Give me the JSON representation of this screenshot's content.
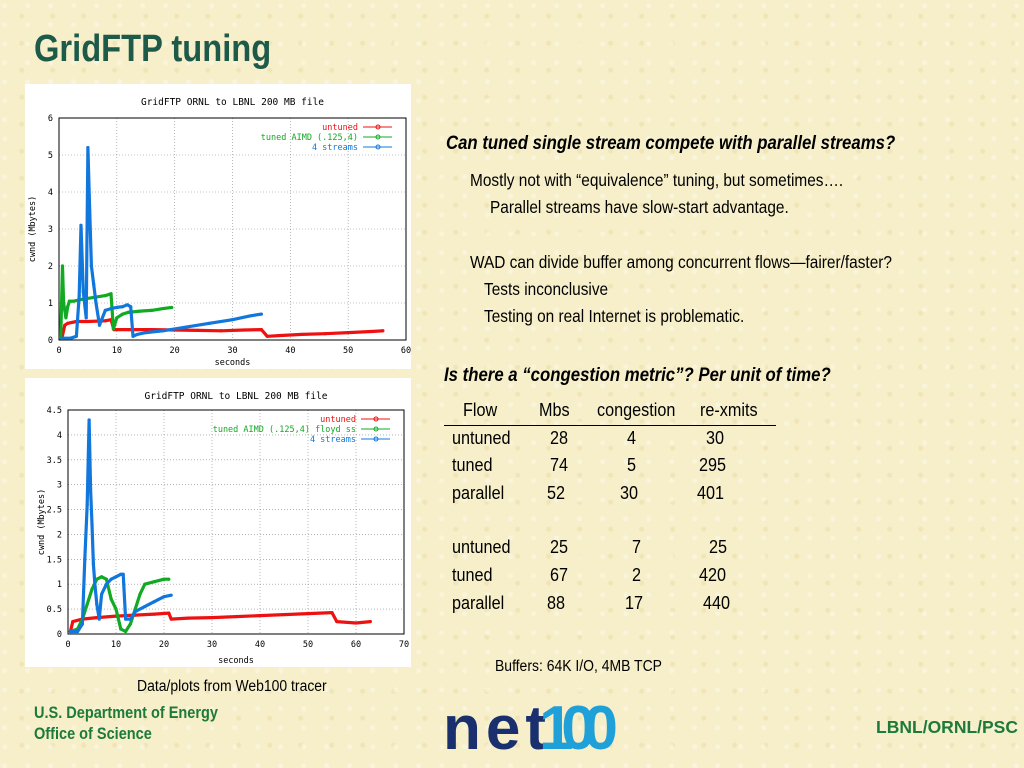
{
  "slide": {
    "title": "GridFTP tuning",
    "question1": "Can tuned single stream compete with parallel streams?",
    "lines1": [
      "Mostly not with “equivalence” tuning, but sometimes….",
      "Parallel streams have slow-start advantage.",
      "WAD can divide buffer among concurrent flows—fairer/faster?",
      "Tests inconclusive",
      "Testing on real Internet is problematic."
    ],
    "question2": "Is there a “congestion metric”?   Per unit of time?",
    "table": {
      "headers": [
        "Flow",
        "Mbs",
        "congestion",
        "re-xmits"
      ],
      "group1": [
        [
          "untuned",
          "28",
          "4",
          "30"
        ],
        [
          "tuned",
          "74",
          "5",
          "295"
        ],
        [
          "parallel",
          "52",
          "30",
          "401"
        ]
      ],
      "group2": [
        [
          "untuned",
          "25",
          "7",
          "25"
        ],
        [
          "tuned",
          "67",
          "2",
          "420"
        ],
        [
          "parallel",
          "88",
          "17",
          "440"
        ]
      ]
    },
    "buffers_note": "Buffers: 64K I/O,  4MB TCP",
    "plots_caption": "Data/plots from Web100 tracer",
    "footer_left": [
      "U.S. Department of Energy",
      "Office of Science"
    ],
    "footer_right": "LBNL/ORNL/PSC",
    "logo_text": "net100",
    "colors": {
      "title": "#1d5a4a",
      "footer": "#1d7a3a",
      "untuned": "#ee1111",
      "tuned": "#11aa22",
      "streams": "#1177dd",
      "logo_dark": "#1a2f6e",
      "logo_light": "#1fa0d8"
    }
  },
  "chart_data": [
    {
      "type": "line",
      "title": "GridFTP ORNL to LBNL 200 MB file",
      "xlabel": "seconds",
      "ylabel": "cwnd (Mbytes)",
      "xlim": [
        0,
        60
      ],
      "ylim": [
        0,
        6
      ],
      "xticks": [
        0,
        10,
        20,
        30,
        40,
        50,
        60
      ],
      "yticks": [
        0,
        1,
        2,
        3,
        4,
        5,
        6
      ],
      "grid": true,
      "legend": "top-right",
      "series": [
        {
          "name": "untuned",
          "color": "#ee1111",
          "points": [
            [
              0.5,
              0.05
            ],
            [
              1,
              0.4
            ],
            [
              1.5,
              0.45
            ],
            [
              3,
              0.5
            ],
            [
              5,
              0.5
            ],
            [
              8,
              0.52
            ],
            [
              9,
              0.55
            ],
            [
              9.5,
              0.28
            ],
            [
              12,
              0.28
            ],
            [
              16,
              0.28
            ],
            [
              20,
              0.27
            ],
            [
              24,
              0.26
            ],
            [
              28,
              0.25
            ],
            [
              32,
              0.27
            ],
            [
              35,
              0.28
            ],
            [
              36,
              0.1
            ],
            [
              38,
              0.12
            ],
            [
              42,
              0.15
            ],
            [
              46,
              0.17
            ],
            [
              50,
              0.2
            ],
            [
              54,
              0.23
            ],
            [
              56,
              0.25
            ]
          ]
        },
        {
          "name": "tuned AIMD (.125,4)",
          "color": "#11aa22",
          "points": [
            [
              0.3,
              0.05
            ],
            [
              0.6,
              2.0
            ],
            [
              0.8,
              1.0
            ],
            [
              1.2,
              0.6
            ],
            [
              1.5,
              0.9
            ],
            [
              1.8,
              1.05
            ],
            [
              2.5,
              1.05
            ],
            [
              4,
              1.1
            ],
            [
              6,
              1.15
            ],
            [
              8,
              1.2
            ],
            [
              9,
              1.25
            ],
            [
              9.4,
              0.3
            ],
            [
              10,
              0.6
            ],
            [
              11,
              0.7
            ],
            [
              12,
              0.75
            ],
            [
              14,
              0.78
            ],
            [
              16,
              0.8
            ],
            [
              18,
              0.85
            ],
            [
              19.5,
              0.88
            ]
          ]
        },
        {
          "name": "4 streams",
          "color": "#1177dd",
          "points": [
            [
              0.5,
              0.05
            ],
            [
              2,
              0.05
            ],
            [
              3,
              0.1
            ],
            [
              3.5,
              1.2
            ],
            [
              3.8,
              3.1
            ],
            [
              4.2,
              1.3
            ],
            [
              4.7,
              0.6
            ],
            [
              5,
              5.2
            ],
            [
              5.3,
              3.5
            ],
            [
              5.6,
              2.0
            ],
            [
              6,
              1.5
            ],
            [
              6.4,
              1.0
            ],
            [
              7,
              0.4
            ],
            [
              8,
              0.8
            ],
            [
              9,
              0.85
            ],
            [
              10,
              0.88
            ],
            [
              11,
              0.9
            ],
            [
              11.8,
              0.95
            ],
            [
              12.4,
              0.9
            ],
            [
              12.8,
              0.1
            ],
            [
              13.5,
              0.15
            ],
            [
              15,
              0.2
            ],
            [
              18,
              0.25
            ],
            [
              22,
              0.35
            ],
            [
              26,
              0.45
            ],
            [
              30,
              0.55
            ],
            [
              33,
              0.65
            ],
            [
              35,
              0.7
            ]
          ]
        }
      ]
    },
    {
      "type": "line",
      "title": "GridFTP ORNL to LBNL 200 MB file",
      "xlabel": "seconds",
      "ylabel": "cwnd (Mbytes)",
      "xlim": [
        0,
        70
      ],
      "ylim": [
        0,
        4.5
      ],
      "xticks": [
        0,
        10,
        20,
        30,
        40,
        50,
        60,
        70
      ],
      "yticks": [
        0,
        0.5,
        1,
        1.5,
        2,
        2.5,
        3,
        3.5,
        4,
        4.5
      ],
      "grid": true,
      "legend": "top-right",
      "series": [
        {
          "name": "untuned",
          "color": "#ee1111",
          "points": [
            [
              0.5,
              0.05
            ],
            [
              1,
              0.25
            ],
            [
              3,
              0.3
            ],
            [
              6,
              0.33
            ],
            [
              10,
              0.36
            ],
            [
              14,
              0.38
            ],
            [
              18,
              0.4
            ],
            [
              21,
              0.42
            ],
            [
              21.5,
              0.3
            ],
            [
              25,
              0.32
            ],
            [
              30,
              0.33
            ],
            [
              35,
              0.35
            ],
            [
              40,
              0.37
            ],
            [
              45,
              0.39
            ],
            [
              50,
              0.41
            ],
            [
              55,
              0.43
            ],
            [
              56,
              0.25
            ],
            [
              60,
              0.22
            ],
            [
              63,
              0.25
            ]
          ]
        },
        {
          "name": "tuned AIMD (.125,4) floyd ss",
          "color": "#11aa22",
          "points": [
            [
              0.5,
              0.05
            ],
            [
              2,
              0.1
            ],
            [
              3,
              0.3
            ],
            [
              4,
              0.6
            ],
            [
              5,
              0.9
            ],
            [
              6,
              1.1
            ],
            [
              7,
              1.15
            ],
            [
              8,
              1.1
            ],
            [
              9,
              0.7
            ],
            [
              10,
              0.5
            ],
            [
              11,
              0.1
            ],
            [
              12,
              0.05
            ],
            [
              13,
              0.2
            ],
            [
              14,
              0.5
            ],
            [
              15,
              0.8
            ],
            [
              16,
              1.0
            ],
            [
              18,
              1.05
            ],
            [
              20,
              1.1
            ],
            [
              21,
              1.1
            ]
          ]
        },
        {
          "name": "4 streams",
          "color": "#1177dd",
          "points": [
            [
              0.5,
              0.05
            ],
            [
              2,
              0.05
            ],
            [
              3,
              0.2
            ],
            [
              3.5,
              1.5
            ],
            [
              4,
              2.6
            ],
            [
              4.4,
              4.3
            ],
            [
              4.7,
              2.9
            ],
            [
              5,
              2.2
            ],
            [
              5.3,
              1.4
            ],
            [
              5.6,
              1.0
            ],
            [
              6,
              0.6
            ],
            [
              6.5,
              0.3
            ],
            [
              7,
              0.8
            ],
            [
              8,
              1.0
            ],
            [
              9,
              1.1
            ],
            [
              10,
              1.15
            ],
            [
              11,
              1.2
            ],
            [
              11.5,
              1.2
            ],
            [
              12,
              0.3
            ],
            [
              13,
              0.3
            ],
            [
              14,
              0.45
            ],
            [
              16,
              0.55
            ],
            [
              18,
              0.65
            ],
            [
              20,
              0.75
            ],
            [
              21.5,
              0.78
            ]
          ]
        }
      ]
    }
  ]
}
